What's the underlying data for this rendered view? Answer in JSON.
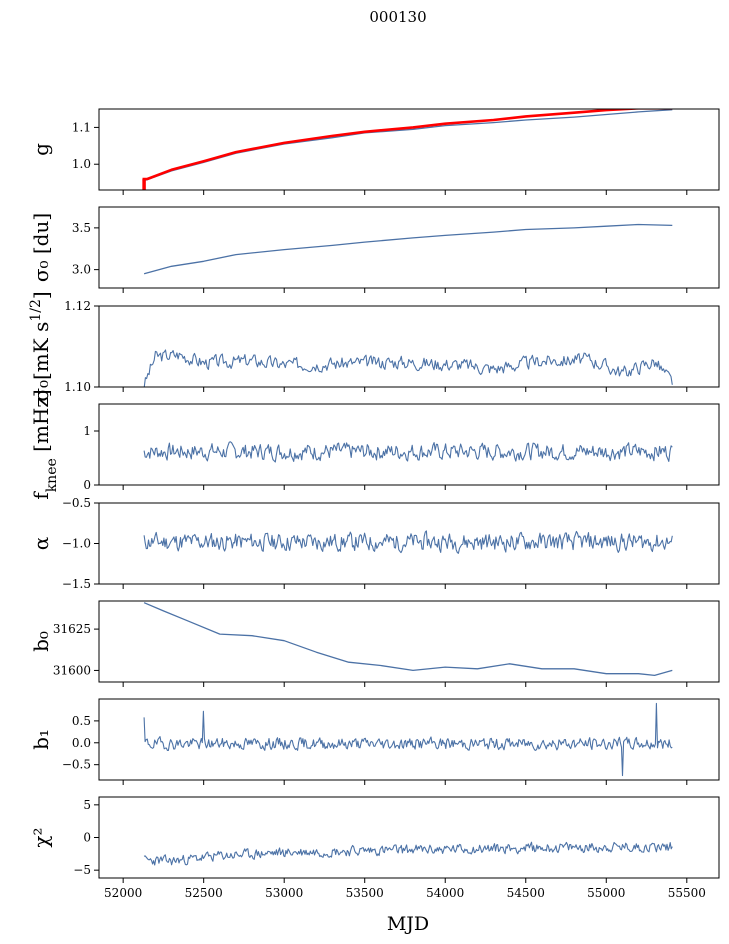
{
  "figure_title": "000130",
  "x_axis": {
    "label": "MJD",
    "range": [
      51850,
      55700
    ],
    "ticks": [
      52000,
      52500,
      53000,
      53500,
      54000,
      54500,
      55000,
      55500
    ],
    "tick_labels": [
      "52000",
      "52500",
      "53000",
      "53500",
      "54000",
      "54500",
      "55000",
      "55500"
    ]
  },
  "colors": {
    "series": "#4c72a6",
    "overlay": "#ff0000"
  },
  "chart_data": [
    {
      "type": "line",
      "id": "gain",
      "ylabel": "g",
      "ylim": [
        0.93,
        1.15
      ],
      "yticks": [
        1.0,
        1.1
      ],
      "ytick_labels": [
        "1.0",
        "1.1"
      ],
      "series": [
        {
          "color": "#4c72a6",
          "x": [
            52120,
            52150,
            52300,
            52500,
            52700,
            53000,
            53300,
            53500,
            53800,
            54000,
            54300,
            54500,
            54800,
            55000,
            55200,
            55410
          ],
          "y": [
            0.955,
            0.958,
            0.982,
            1.005,
            1.03,
            1.055,
            1.072,
            1.085,
            1.095,
            1.105,
            1.113,
            1.12,
            1.128,
            1.135,
            1.142,
            1.148
          ]
        },
        {
          "color": "#ff0000",
          "x": [
            52120,
            52150,
            52300,
            52500,
            52700,
            53000,
            53300,
            53500,
            53800,
            54000,
            54300,
            54500,
            54800,
            55000,
            55200,
            55410
          ],
          "y": [
            0.96,
            0.96,
            0.985,
            1.008,
            1.033,
            1.058,
            1.077,
            1.088,
            1.1,
            1.11,
            1.12,
            1.13,
            1.14,
            1.147,
            1.152,
            1.152
          ]
        }
      ],
      "red_drop": {
        "x": 52130,
        "y_from": 0.96,
        "y_to": 0.93
      }
    },
    {
      "type": "line",
      "id": "sigma0-du",
      "ylabel": "σ₀ [du]",
      "ylim": [
        2.78,
        3.75
      ],
      "yticks": [
        3.0,
        3.5
      ],
      "ytick_labels": [
        "3.0",
        "3.5"
      ],
      "series": [
        {
          "color": "#4c72a6",
          "x": [
            52130,
            52300,
            52500,
            52700,
            53000,
            53300,
            53500,
            53800,
            54000,
            54300,
            54500,
            54800,
            55000,
            55200,
            55410
          ],
          "y": [
            2.95,
            3.04,
            3.1,
            3.18,
            3.24,
            3.29,
            3.33,
            3.38,
            3.41,
            3.45,
            3.48,
            3.5,
            3.52,
            3.54,
            3.53
          ]
        }
      ]
    },
    {
      "type": "line",
      "id": "sigma0-mk",
      "ylabel": "σ₀[mK s^1/2]",
      "ylim": [
        1.1,
        1.12
      ],
      "yticks": [
        1.1,
        1.12
      ],
      "ytick_labels": [
        "1.10",
        "1.12"
      ],
      "noise": {
        "x_start": 52130,
        "x_end": 55410,
        "n": 420,
        "base": 1.1045,
        "amp": 0.0015,
        "seed": 3,
        "anchors": [
          [
            52130,
            1.1005
          ],
          [
            52200,
            1.1075
          ],
          [
            52350,
            1.108
          ],
          [
            52500,
            1.106
          ],
          [
            52800,
            1.1065
          ],
          [
            53000,
            1.1055
          ],
          [
            53300,
            1.1058
          ],
          [
            53700,
            1.1062
          ],
          [
            54100,
            1.1055
          ],
          [
            54300,
            1.1045
          ],
          [
            54600,
            1.1065
          ],
          [
            54900,
            1.1068
          ],
          [
            55100,
            1.1035
          ],
          [
            55300,
            1.1063
          ],
          [
            55410,
            1.1012
          ]
        ]
      }
    },
    {
      "type": "line",
      "id": "fknee",
      "ylabel": "f_knee [mHz]",
      "ylim": [
        0,
        1.5
      ],
      "yticks": [
        0,
        1
      ],
      "ytick_labels": [
        "0",
        "1"
      ],
      "noise": {
        "x_start": 52130,
        "x_end": 55410,
        "n": 460,
        "base": 0.62,
        "amp": 0.14,
        "seed": 7
      }
    },
    {
      "type": "line",
      "id": "alpha",
      "ylabel": "α",
      "ylim": [
        -1.5,
        -0.5
      ],
      "yticks": [
        -1.5,
        -1.0,
        -0.5
      ],
      "ytick_labels": [
        "−1.5",
        "−1.0",
        "−0.5"
      ],
      "noise": {
        "x_start": 52130,
        "x_end": 55410,
        "n": 480,
        "base": -0.98,
        "amp": 0.1,
        "seed": 11
      }
    },
    {
      "type": "line",
      "id": "b0",
      "ylabel": "b₀",
      "ylim": [
        31593,
        31642
      ],
      "yticks": [
        31600,
        31625
      ],
      "ytick_labels": [
        "31600",
        "31625"
      ],
      "series": [
        {
          "color": "#4c72a6",
          "x": [
            52130,
            52250,
            52400,
            52600,
            52800,
            53000,
            53200,
            53400,
            53600,
            53800,
            54000,
            54200,
            54400,
            54600,
            54800,
            55000,
            55200,
            55300,
            55410
          ],
          "y": [
            31641,
            31636,
            31630,
            31622,
            31621,
            31618,
            31611,
            31605,
            31603,
            31600,
            31602,
            31601,
            31604,
            31601,
            31601,
            31598,
            31598,
            31597,
            31600
          ]
        }
      ]
    },
    {
      "type": "line",
      "id": "b1",
      "ylabel": "b₁",
      "ylim": [
        -0.85,
        1.0
      ],
      "yticks": [
        -0.5,
        0.0,
        0.5
      ],
      "ytick_labels": [
        "−0.5",
        "0.0",
        "0.5"
      ],
      "noise": {
        "x_start": 52130,
        "x_end": 55410,
        "n": 500,
        "base": -0.02,
        "amp": 0.12,
        "seed": 19,
        "spikes": [
          [
            52130,
            0.58
          ],
          [
            52500,
            0.72
          ],
          [
            55100,
            -0.75
          ],
          [
            55310,
            0.9
          ]
        ]
      }
    },
    {
      "type": "line",
      "id": "chi2",
      "ylabel": "χ²",
      "ylim": [
        -6.2,
        6.2
      ],
      "yticks": [
        -5,
        0,
        5
      ],
      "ytick_labels": [
        "−5",
        "0",
        "5"
      ],
      "noise": {
        "x_start": 52130,
        "x_end": 55410,
        "n": 500,
        "base": -2.0,
        "amp": 0.7,
        "seed": 23,
        "anchors": [
          [
            52130,
            -3.5
          ],
          [
            52300,
            -3.6
          ],
          [
            52600,
            -2.8
          ],
          [
            53000,
            -2.3
          ],
          [
            53500,
            -2.0
          ],
          [
            54000,
            -1.8
          ],
          [
            54500,
            -1.6
          ],
          [
            55000,
            -1.5
          ],
          [
            55410,
            -1.4
          ]
        ]
      }
    }
  ]
}
